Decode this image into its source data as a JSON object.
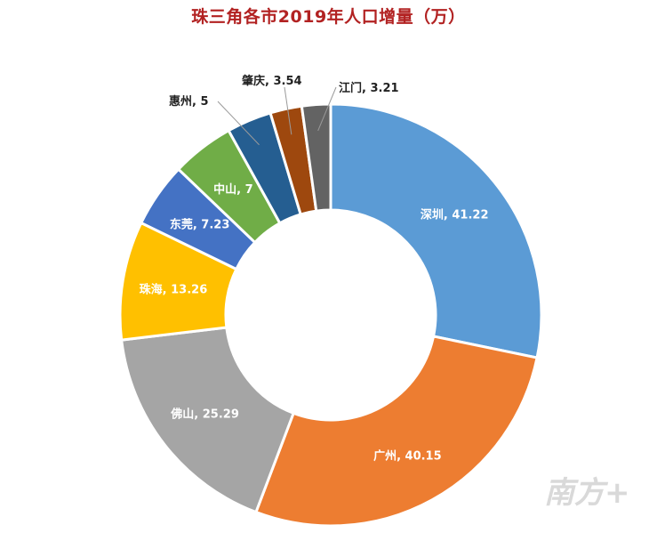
{
  "chart_data": {
    "type": "pie",
    "subtype": "donut",
    "title": "珠三角各市2019年人口增量（万）",
    "series": [
      {
        "name": "深圳",
        "value": 41.22,
        "label": "深圳, 41.22",
        "color": "#5b9bd5",
        "label_pos": "inside"
      },
      {
        "name": "广州",
        "value": 40.15,
        "label": "广州, 40.15",
        "color": "#ed7d31",
        "label_pos": "inside"
      },
      {
        "name": "佛山",
        "value": 25.29,
        "label": "佛山, 25.29",
        "color": "#a5a5a5",
        "label_pos": "inside"
      },
      {
        "name": "珠海",
        "value": 13.26,
        "label": "珠海, 13.26",
        "color": "#ffc000",
        "label_pos": "inside"
      },
      {
        "name": "东莞",
        "value": 7.23,
        "label": "东莞, 7.23",
        "color": "#4472c4",
        "label_pos": "inside"
      },
      {
        "name": "中山",
        "value": 7,
        "label": "中山, 7",
        "color": "#70ad47",
        "label_pos": "inside"
      },
      {
        "name": "惠州",
        "value": 5,
        "label": "惠州, 5",
        "color": "#255e91",
        "label_pos": "outside"
      },
      {
        "name": "肇庆",
        "value": 3.54,
        "label": "肇庆, 3.54",
        "color": "#9e480e",
        "label_pos": "outside"
      },
      {
        "name": "江门",
        "value": 3.21,
        "label": "江门, 3.21",
        "color": "#636363",
        "label_pos": "outside"
      }
    ]
  },
  "watermark": {
    "text": "南方+"
  }
}
